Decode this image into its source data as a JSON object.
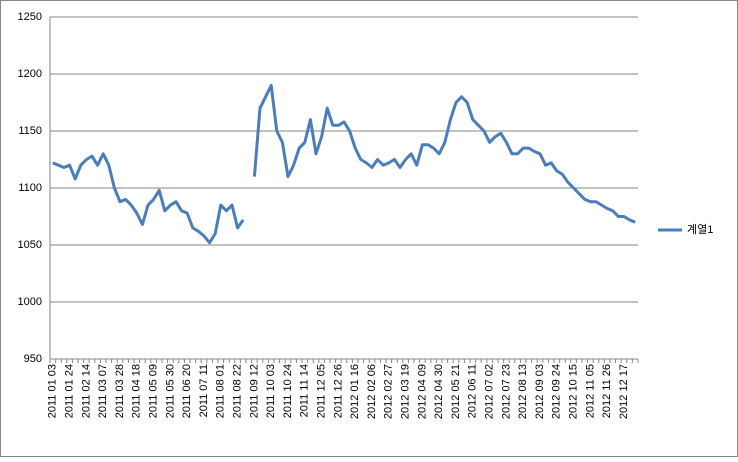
{
  "chart_data": {
    "type": "line",
    "categories": [
      "2011 01 03",
      null,
      null,
      "2011 01 24",
      null,
      null,
      "2011 02 14",
      null,
      null,
      "2011 03 07",
      null,
      null,
      "2011 03 28",
      null,
      null,
      "2011 04 18",
      null,
      null,
      "2011 05 09",
      null,
      null,
      "2011 05 30",
      null,
      null,
      "2011 06 20",
      null,
      null,
      "2011 07 11",
      null,
      null,
      "2011 08 01",
      null,
      null,
      "2011 08 22",
      null,
      null,
      "2011 09 12",
      null,
      null,
      "2011 10 03",
      null,
      null,
      "2011 10 24",
      null,
      null,
      "2011 11 14",
      null,
      null,
      "2011 12 05",
      null,
      null,
      "2011 12 26",
      null,
      null,
      "2012 01 16",
      null,
      null,
      "2012 02 06",
      null,
      null,
      "2012 02 27",
      null,
      null,
      "2012 03 19",
      null,
      null,
      "2012 04 09",
      null,
      null,
      "2012 04 30",
      null,
      null,
      "2012 05 21",
      null,
      null,
      "2012 06 11",
      null,
      null,
      "2012 07 02",
      null,
      null,
      "2012 07 23",
      null,
      null,
      "2012 08 13",
      null,
      null,
      "2012 09 03",
      null,
      null,
      "2012 09 24",
      null,
      null,
      "2012 10 15",
      null,
      null,
      "2012 11 05",
      null,
      null,
      "2012 11 26",
      null,
      null,
      "2012 12 17",
      null,
      null
    ],
    "series": [
      {
        "name": "계열1",
        "color": "#4a7ebb",
        "values": [
          1122,
          1120,
          1118,
          1120,
          1108,
          1120,
          1125,
          1128,
          1120,
          1130,
          1120,
          1100,
          1088,
          1090,
          1085,
          1078,
          1068,
          1085,
          1090,
          1098,
          1080,
          1085,
          1088,
          1080,
          1078,
          1065,
          1062,
          1058,
          1052,
          1060,
          1085,
          1080,
          1085,
          1065,
          1072,
          null,
          1110,
          1170,
          1180,
          1190,
          1150,
          1140,
          1110,
          1120,
          1135,
          1140,
          1160,
          1130,
          1145,
          1170,
          1155,
          1155,
          1158,
          1150,
          1135,
          1125,
          1122,
          1118,
          1125,
          1120,
          1122,
          1125,
          1118,
          1125,
          1130,
          1120,
          1138,
          1138,
          1135,
          1130,
          1140,
          1160,
          1175,
          1180,
          1175,
          1160,
          1155,
          1150,
          1140,
          1145,
          1148,
          1140,
          1130,
          1130,
          1135,
          1135,
          1132,
          1130,
          1120,
          1122,
          1115,
          1112,
          1105,
          1100,
          1095,
          1090,
          1088,
          1088,
          1085,
          1082,
          1080,
          1075,
          1075,
          1072,
          1070
        ]
      }
    ],
    "ylim": [
      950,
      1250
    ],
    "yticks": [
      950,
      1000,
      1050,
      1100,
      1150,
      1200,
      1250
    ],
    "grid": true,
    "legend": "right"
  }
}
